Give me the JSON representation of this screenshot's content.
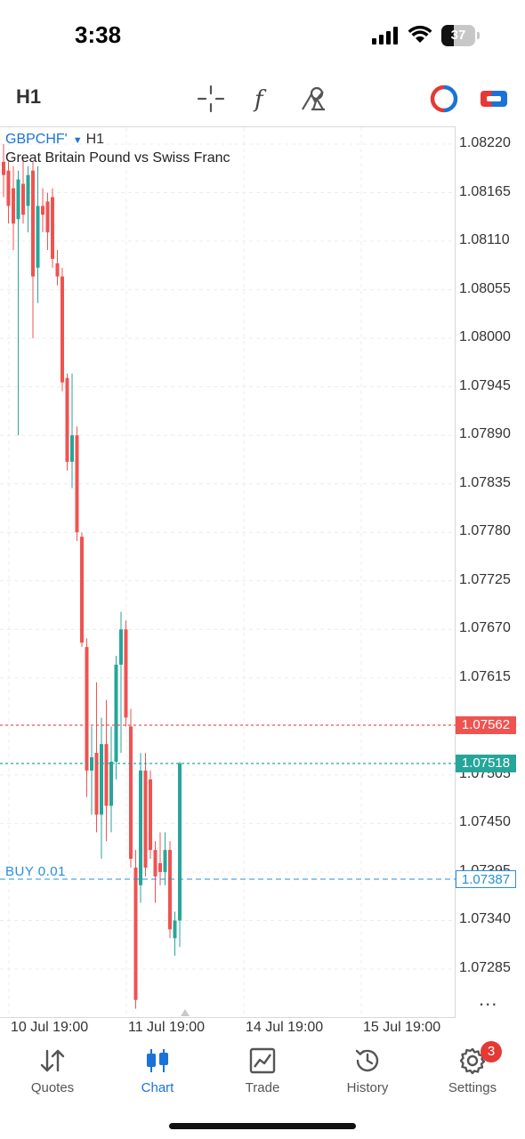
{
  "status_bar": {
    "time": "3:38",
    "battery": "37"
  },
  "toolbar": {
    "timeframe": "H1",
    "icons": [
      "crosshair-icon",
      "indicators-icon",
      "objects-icon",
      "one-click-trading-icon",
      "trade-panel-icon"
    ]
  },
  "chart": {
    "symbol": "GBPCHF'",
    "symbol_timeframe": "H1",
    "description": "Great Britain Pound vs Swiss Franc",
    "ask_price": "1.07562",
    "bid_price": "1.07518",
    "position_label": "BUY 0.01",
    "position_price": "1.07387",
    "y_ticks": [
      "1.08220",
      "1.08165",
      "1.08110",
      "1.08055",
      "1.08000",
      "1.07945",
      "1.07890",
      "1.07835",
      "1.07780",
      "1.07725",
      "1.07670",
      "1.07615",
      "1.07505",
      "1.07450",
      "1.07395",
      "1.07340",
      "1.07285"
    ],
    "x_ticks": [
      "10 Jul 19:00",
      "11 Jul 19:00",
      "14 Jul 19:00",
      "15 Jul 19:00"
    ],
    "colors": {
      "up": "#26a69a",
      "down": "#ef5350",
      "ask_line": "#ef5350",
      "bid_line": "#26a69a",
      "position_line": "#2a8fd6"
    }
  },
  "chart_data": {
    "type": "candlestick",
    "title": "GBPCHF' H1",
    "ylim": [
      1.0723,
      1.0825
    ],
    "x_ticks": [
      "10 Jul 19:00",
      "11 Jul 19:00",
      "14 Jul 19:00",
      "15 Jul 19:00"
    ],
    "candles": [
      {
        "o": 1.082,
        "h": 1.0822,
        "l": 1.0816,
        "c": 1.08185
      },
      {
        "o": 1.0819,
        "h": 1.082,
        "l": 1.0813,
        "c": 1.0815
      },
      {
        "o": 1.0817,
        "h": 1.08195,
        "l": 1.081,
        "c": 1.0813
      },
      {
        "o": 1.08135,
        "h": 1.0819,
        "l": 1.0789,
        "c": 1.0818
      },
      {
        "o": 1.08175,
        "h": 1.08205,
        "l": 1.0813,
        "c": 1.0814
      },
      {
        "o": 1.0815,
        "h": 1.08195,
        "l": 1.0812,
        "c": 1.08185
      },
      {
        "o": 1.0819,
        "h": 1.082,
        "l": 1.08,
        "c": 1.0807
      },
      {
        "o": 1.0808,
        "h": 1.08195,
        "l": 1.0804,
        "c": 1.0815
      },
      {
        "o": 1.0815,
        "h": 1.0817,
        "l": 1.0812,
        "c": 1.0814
      },
      {
        "o": 1.08155,
        "h": 1.08165,
        "l": 1.081,
        "c": 1.0812
      },
      {
        "o": 1.0816,
        "h": 1.0817,
        "l": 1.0808,
        "c": 1.0809
      },
      {
        "o": 1.08085,
        "h": 1.081,
        "l": 1.0806,
        "c": 1.0807
      },
      {
        "o": 1.0807,
        "h": 1.0808,
        "l": 1.0794,
        "c": 1.0795
      },
      {
        "o": 1.07955,
        "h": 1.0796,
        "l": 1.0785,
        "c": 1.0786
      },
      {
        "o": 1.0786,
        "h": 1.0796,
        "l": 1.0783,
        "c": 1.0789
      },
      {
        "o": 1.0789,
        "h": 1.079,
        "l": 1.0777,
        "c": 1.0778
      },
      {
        "o": 1.07775,
        "h": 1.0778,
        "l": 1.0765,
        "c": 1.07655
      },
      {
        "o": 1.0765,
        "h": 1.0766,
        "l": 1.0748,
        "c": 1.0751
      },
      {
        "o": 1.0751,
        "h": 1.0756,
        "l": 1.0746,
        "c": 1.07525
      },
      {
        "o": 1.0753,
        "h": 1.0761,
        "l": 1.0744,
        "c": 1.0746
      },
      {
        "o": 1.0746,
        "h": 1.0757,
        "l": 1.0741,
        "c": 1.0754
      },
      {
        "o": 1.0754,
        "h": 1.0759,
        "l": 1.0743,
        "c": 1.0747
      },
      {
        "o": 1.0747,
        "h": 1.0756,
        "l": 1.0744,
        "c": 1.0752
      },
      {
        "o": 1.0752,
        "h": 1.0764,
        "l": 1.075,
        "c": 1.0763
      },
      {
        "o": 1.0763,
        "h": 1.0769,
        "l": 1.0753,
        "c": 1.0767
      },
      {
        "o": 1.0767,
        "h": 1.0768,
        "l": 1.0756,
        "c": 1.0757
      },
      {
        "o": 1.0756,
        "h": 1.0758,
        "l": 1.074,
        "c": 1.0741
      },
      {
        "o": 1.074,
        "h": 1.0742,
        "l": 1.0724,
        "c": 1.0725
      },
      {
        "o": 1.0738,
        "h": 1.0753,
        "l": 1.0736,
        "c": 1.0751
      },
      {
        "o": 1.0751,
        "h": 1.0753,
        "l": 1.0739,
        "c": 1.074
      },
      {
        "o": 1.075,
        "h": 1.0751,
        "l": 1.0741,
        "c": 1.0742
      },
      {
        "o": 1.0742,
        "h": 1.0743,
        "l": 1.0736,
        "c": 1.0739
      },
      {
        "o": 1.07405,
        "h": 1.0744,
        "l": 1.0738,
        "c": 1.07395
      },
      {
        "o": 1.07395,
        "h": 1.0744,
        "l": 1.0738,
        "c": 1.0742
      },
      {
        "o": 1.0742,
        "h": 1.0743,
        "l": 1.0732,
        "c": 1.0733
      },
      {
        "o": 1.0732,
        "h": 1.0735,
        "l": 1.073,
        "c": 1.0734
      },
      {
        "o": 1.0734,
        "h": 1.0752,
        "l": 1.0731,
        "c": 1.07518
      }
    ]
  },
  "bottom_nav": [
    {
      "label": "Quotes",
      "icon": "quotes-icon"
    },
    {
      "label": "Chart",
      "icon": "chart-icon",
      "active": true
    },
    {
      "label": "Trade",
      "icon": "trade-icon"
    },
    {
      "label": "History",
      "icon": "history-icon"
    },
    {
      "label": "Settings",
      "icon": "settings-icon",
      "badge": "3"
    }
  ],
  "more_menu": "..."
}
